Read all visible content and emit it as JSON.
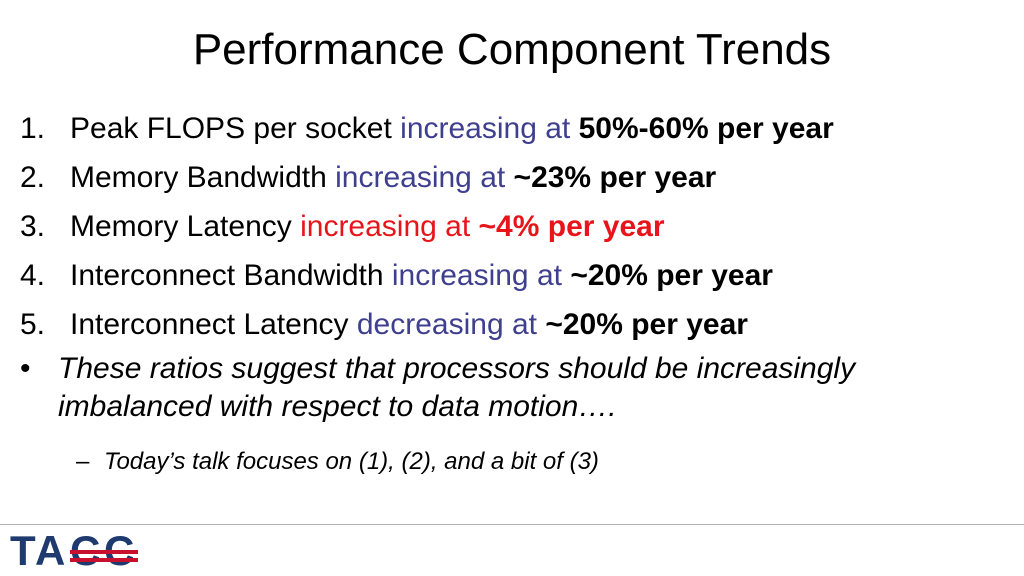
{
  "slide": {
    "title": "Performance Component Trends",
    "items": [
      {
        "num": "1.",
        "metric": "Peak FLOPS per socket ",
        "trend": "increasing at ",
        "value": "50%-60% per year"
      },
      {
        "num": "2.",
        "metric": "Memory Bandwidth ",
        "trend": "increasing at ",
        "value": "~23% per year"
      },
      {
        "num": "3.",
        "metric": "Memory Latency ",
        "trend": "increasing at ",
        "value": "~4% per year"
      },
      {
        "num": "4.",
        "metric": "Interconnect Bandwidth ",
        "trend": "increasing at ",
        "value": "~20% per year"
      },
      {
        "num": "5.",
        "metric": "Interconnect Latency ",
        "trend": "decreasing at ",
        "value": "~20% per year"
      }
    ],
    "bullet": {
      "marker": "•",
      "text": "These ratios suggest that processors should be increasingly imbalanced with respect to data motion…."
    },
    "sub_bullet": {
      "marker": "–",
      "text": "Today’s talk focuses on (1), (2), and a bit of (3)"
    }
  },
  "logo": {
    "text": "TACC",
    "colors": {
      "primary": "#1e3a6e",
      "accent": "#c8102e"
    }
  },
  "colors": {
    "blue_text": "#3f3f8f",
    "red_text": "#e8141b"
  }
}
